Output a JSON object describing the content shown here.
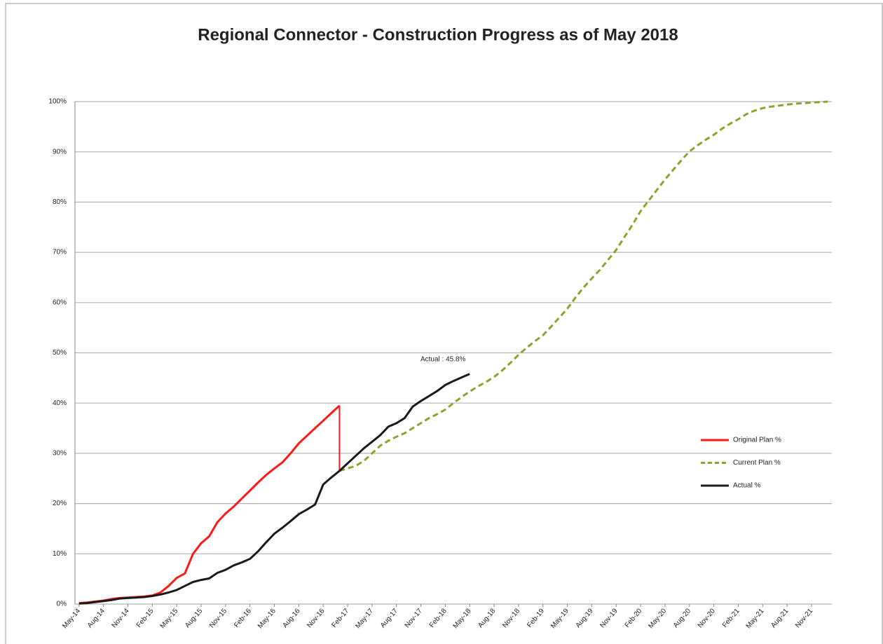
{
  "chart_data": {
    "type": "line",
    "title": "Regional Connector - Construction Progress as of May 2018",
    "annotation": "Actual : 45.8%",
    "categories": [
      "May-14",
      null,
      null,
      "Aug-14",
      null,
      null,
      "Nov-14",
      null,
      null,
      "Feb-15",
      null,
      null,
      "May-15",
      null,
      null,
      "Aug-15",
      null,
      null,
      "Nov-15",
      null,
      null,
      "Feb-16",
      null,
      null,
      "May-16",
      null,
      null,
      "Aug-16",
      null,
      null,
      "Nov-16",
      null,
      null,
      "Feb-17",
      null,
      null,
      "May-17",
      null,
      null,
      "Aug-17",
      null,
      null,
      "Nov-17",
      null,
      null,
      "Feb-18",
      null,
      null,
      "May-18",
      null,
      null,
      "Aug-18",
      null,
      null,
      "Nov-18",
      null,
      null,
      "Feb-19",
      null,
      null,
      "May-19",
      null,
      null,
      "Aug-19",
      null,
      null,
      "Nov-19",
      null,
      null,
      "Feb-20",
      null,
      null,
      "May-20",
      null,
      null,
      "Aug-20",
      null,
      null,
      "Nov-20",
      null,
      null,
      "Feb-21",
      null,
      null,
      "May-21",
      null,
      null,
      "Aug-21",
      null,
      null,
      "Nov-21",
      null,
      null
    ],
    "series": [
      {
        "name": "Original Plan %",
        "color": "#ff1a1a",
        "line_style": "solid",
        "values": [
          0.2,
          0.3,
          0.5,
          0.7,
          1.0,
          1.2,
          1.3,
          1.4,
          1.5,
          1.7,
          2.3,
          3.6,
          5.2,
          6.1,
          10.0,
          12.1,
          13.5,
          16.3,
          18.0,
          19.4,
          21.0,
          22.6,
          24.2,
          25.7,
          27.0,
          28.2,
          30.0,
          32.0,
          33.5,
          35.0,
          36.5,
          38.0,
          39.5,
          null,
          null,
          null,
          null,
          null,
          null,
          null,
          null,
          null,
          null,
          null,
          null,
          null,
          null,
          null,
          null,
          null,
          null,
          null,
          null,
          null,
          null,
          null,
          null,
          null,
          null,
          null,
          null,
          null,
          null,
          null,
          null,
          null,
          null,
          null,
          null,
          null,
          null,
          null,
          null,
          null,
          null,
          null,
          null,
          null,
          null,
          null,
          null,
          null,
          null,
          null,
          null,
          null,
          null,
          null,
          null,
          null,
          null,
          null,
          null
        ]
      },
      {
        "name": "Current Plan %",
        "color": "#8aa62e",
        "line_style": "dashed",
        "values": [
          null,
          null,
          null,
          null,
          null,
          null,
          null,
          null,
          null,
          null,
          null,
          null,
          null,
          null,
          null,
          null,
          null,
          null,
          null,
          null,
          null,
          null,
          null,
          null,
          null,
          null,
          null,
          null,
          null,
          null,
          null,
          null,
          26.5,
          27.0,
          27.5,
          28.5,
          30.0,
          31.5,
          32.5,
          33.3,
          34.0,
          35.0,
          36.0,
          37.0,
          37.8,
          38.7,
          40.0,
          41.2,
          42.3,
          43.3,
          44.2,
          45.2,
          46.5,
          48.0,
          49.6,
          51.0,
          52.3,
          53.5,
          55.2,
          57.0,
          58.8,
          61.0,
          63.0,
          64.8,
          66.5,
          68.5,
          70.5,
          73.0,
          75.5,
          78.2,
          80.3,
          82.4,
          84.5,
          86.4,
          88.3,
          90.1,
          91.3,
          92.4,
          93.4,
          94.6,
          95.6,
          96.5,
          97.5,
          98.2,
          98.7,
          99.0,
          99.2,
          99.4,
          99.6,
          99.7,
          99.8,
          99.9,
          100
        ]
      },
      {
        "name": "Actual %",
        "color": "#1a1a1a",
        "line_style": "solid",
        "values": [
          0.1,
          0.2,
          0.4,
          0.6,
          0.8,
          1.1,
          1.2,
          1.3,
          1.4,
          1.6,
          1.9,
          2.3,
          2.8,
          3.6,
          4.4,
          4.8,
          5.1,
          6.2,
          6.8,
          7.7,
          8.3,
          9.0,
          10.5,
          12.3,
          14.0,
          15.2,
          16.5,
          17.9,
          18.8,
          19.8,
          23.8,
          25.2,
          26.5,
          28.0,
          29.5,
          31.0,
          32.3,
          33.6,
          35.3,
          36.0,
          37.0,
          39.3,
          40.4,
          41.4,
          42.4,
          43.6,
          44.4,
          45.1,
          45.8,
          null,
          null,
          null,
          null,
          null,
          null,
          null,
          null,
          null,
          null,
          null,
          null,
          null,
          null,
          null,
          null,
          null,
          null,
          null,
          null,
          null,
          null,
          null,
          null,
          null,
          null,
          null,
          null,
          null,
          null,
          null,
          null,
          null,
          null,
          null,
          null,
          null,
          null,
          null,
          null,
          null,
          null,
          null,
          null
        ]
      }
    ],
    "ylim": [
      0,
      100
    ],
    "yticks": [
      {
        "value": 0,
        "label": "0%"
      },
      {
        "value": 10,
        "label": "10%"
      },
      {
        "value": 20,
        "label": "20%"
      },
      {
        "value": 30,
        "label": "30%"
      },
      {
        "value": 40,
        "label": "40%"
      },
      {
        "value": 50,
        "label": "50%"
      },
      {
        "value": 60,
        "label": "60%"
      },
      {
        "value": 70,
        "label": "70%"
      },
      {
        "value": 80,
        "label": "80%"
      },
      {
        "value": 90,
        "label": "90%"
      },
      {
        "value": 100,
        "label": "100%"
      }
    ],
    "grid": true,
    "legend": "right"
  }
}
